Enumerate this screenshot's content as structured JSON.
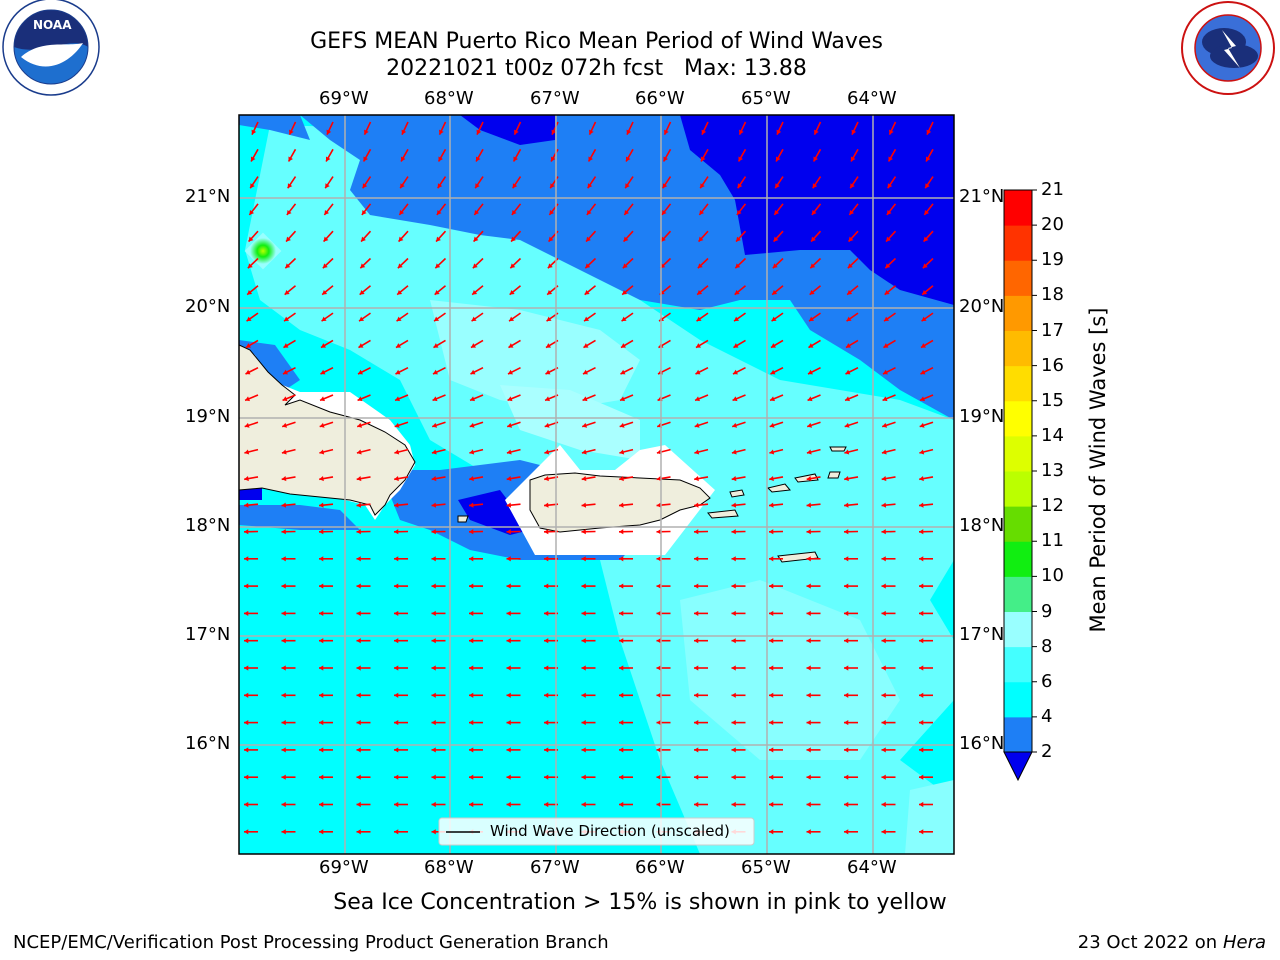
{
  "header": {
    "title_line1": "GEFS MEAN Puerto Rico Mean Period of Wind Waves",
    "title_line2": "20221021 t00z 072h fcst   Max: 13.88"
  },
  "logos": {
    "left": {
      "name": "NOAA",
      "text": "NOAA",
      "ring_text": "NATIONAL OCEANIC AND ATMOSPHERIC ADMINISTRATION · U.S. DEPARTMENT OF COMMERCE"
    },
    "right": {
      "name": "National Weather Service",
      "ring_text": "NATIONAL WEATHER SERVICE"
    }
  },
  "map": {
    "lon_labels": [
      "69°W",
      "68°W",
      "67°W",
      "66°W",
      "65°W",
      "64°W"
    ],
    "lat_labels": [
      "21°N",
      "20°N",
      "19°N",
      "18°N",
      "17°N",
      "16°N"
    ],
    "legend_label": "Wind Wave Direction (unscaled)",
    "arrow_color": "#ff0000",
    "land_color": "#efeedd"
  },
  "colorbar": {
    "label": "Mean Period of Wind Waves [s]",
    "ticks": [
      "2",
      "4",
      "6",
      "8",
      "9",
      "10",
      "11",
      "12",
      "13",
      "14",
      "15",
      "16",
      "17",
      "18",
      "19",
      "20",
      "21"
    ],
    "colors": [
      "#0000ee",
      "#1e7ff5",
      "#00ffff",
      "#44ffff",
      "#99ffff",
      "#44ee88",
      "#11ee11",
      "#66dd00",
      "#bbff00",
      "#ddff00",
      "#ffff00",
      "#ffdd00",
      "#ffbb00",
      "#ff9900",
      "#ff6600",
      "#ff3300",
      "#ff0000"
    ],
    "under_color": "#0000ee"
  },
  "notes": {
    "sea_ice": "Sea Ice Concentration > 15% is shown in pink to yellow"
  },
  "footer": {
    "branch": "NCEP/EMC/Verification Post Processing Product Generation Branch",
    "date": "23 Oct 2022 on",
    "machine": "Hera"
  }
}
